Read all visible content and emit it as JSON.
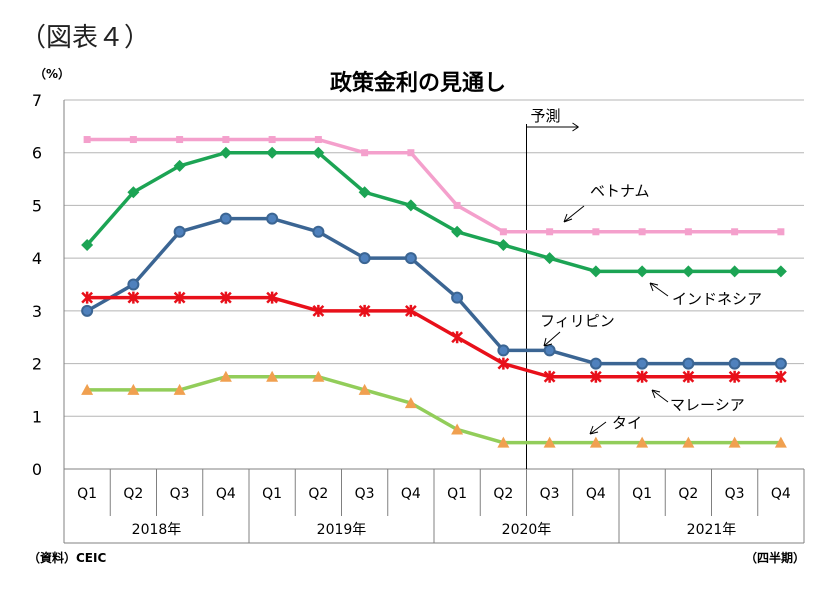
{
  "figure_label": "（図表４）",
  "source_note": "（資料）CEIC",
  "period_note": "（四半期）",
  "chart_data": {
    "type": "line",
    "title": "政策金利の見通し",
    "y_unit": "（%）",
    "ylim": [
      0,
      7
    ],
    "yticks": [
      "0",
      "1",
      "2",
      "3",
      "4",
      "5",
      "6",
      "7"
    ],
    "grid": true,
    "categories": [
      "Q1",
      "Q2",
      "Q3",
      "Q4",
      "Q1",
      "Q2",
      "Q3",
      "Q4",
      "Q1",
      "Q2",
      "Q3",
      "Q4",
      "Q1",
      "Q2",
      "Q3",
      "Q4"
    ],
    "years": [
      {
        "label": "2018年",
        "start": 0,
        "end": 3
      },
      {
        "label": "2019年",
        "start": 4,
        "end": 7
      },
      {
        "label": "2020年",
        "start": 8,
        "end": 11
      },
      {
        "label": "2021年",
        "start": 12,
        "end": 15
      }
    ],
    "forecast": {
      "label": "予測",
      "after_index": 9.5
    },
    "series": [
      {
        "name": "ベトナム",
        "color": "#f4a0cc",
        "marker": "square",
        "values": [
          6.25,
          6.25,
          6.25,
          6.25,
          6.25,
          6.25,
          6.0,
          6.0,
          5.0,
          4.5,
          4.5,
          4.5,
          4.5,
          4.5,
          4.5,
          4.5
        ]
      },
      {
        "name": "インドネシア",
        "color": "#1ca454",
        "marker": "diamond",
        "values": [
          4.25,
          5.25,
          5.75,
          6.0,
          6.0,
          6.0,
          5.25,
          5.0,
          4.5,
          4.25,
          4.0,
          3.75,
          3.75,
          3.75,
          3.75,
          3.75
        ]
      },
      {
        "name": "フィリピン",
        "color": "#3b6593",
        "marker": "circle",
        "values": [
          3.0,
          3.5,
          4.5,
          4.75,
          4.75,
          4.5,
          4.0,
          4.0,
          3.25,
          2.25,
          2.25,
          2.0,
          2.0,
          2.0,
          2.0,
          2.0
        ]
      },
      {
        "name": "マレーシア",
        "color": "#e8101a",
        "marker": "x",
        "values": [
          3.25,
          3.25,
          3.25,
          3.25,
          3.25,
          3.0,
          3.0,
          3.0,
          2.5,
          2.0,
          1.75,
          1.75,
          1.75,
          1.75,
          1.75,
          1.75
        ]
      },
      {
        "name": "タイ",
        "color": "#92cd5a",
        "marker": "triangle",
        "marker_color": "#f0a050",
        "values": [
          1.5,
          1.5,
          1.5,
          1.75,
          1.75,
          1.75,
          1.5,
          1.25,
          0.75,
          0.5,
          0.5,
          0.5,
          0.5,
          0.5,
          0.5,
          0.5
        ]
      }
    ]
  }
}
